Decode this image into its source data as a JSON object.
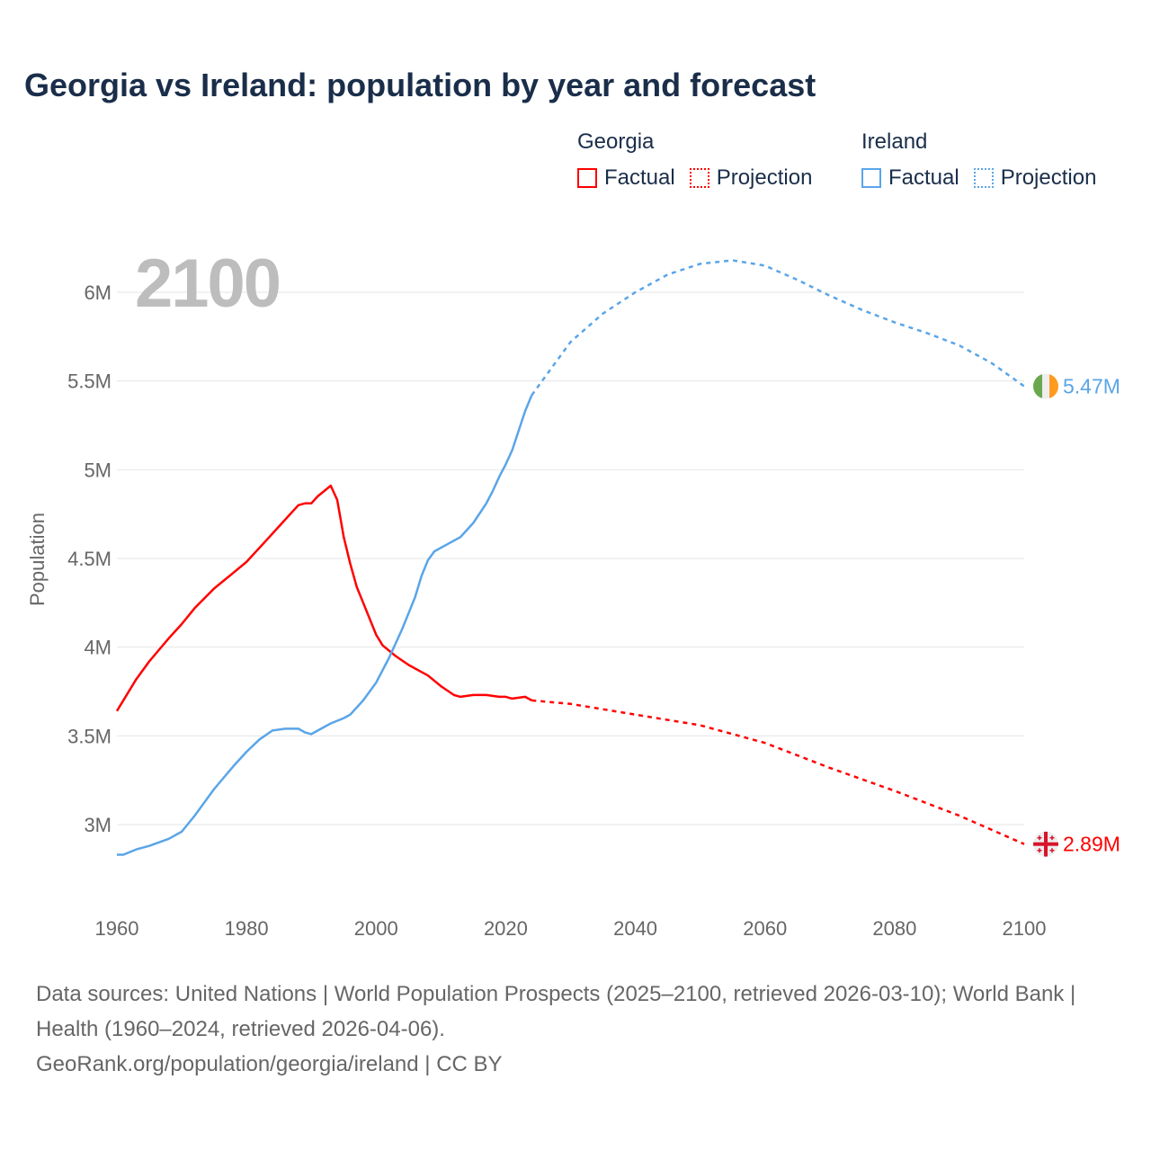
{
  "title": "Georgia vs Ireland: population by year and forecast",
  "legend": {
    "groups": [
      {
        "name": "Georgia",
        "factual": "Factual",
        "projection": "Projection",
        "color": "#ff0000"
      },
      {
        "name": "Ireland",
        "factual": "Factual",
        "projection": "Projection",
        "color": "#5aa5e8"
      }
    ]
  },
  "current_year_label": "2100",
  "footer": {
    "sources": "Data sources: United Nations | World Population Prospects (2025–2100, retrieved 2026-03-10); World Bank | Health (1960–2024, retrieved 2026-04-06).",
    "link": "GeoRank.org/population/georgia/ireland | CC BY"
  },
  "chart_data": {
    "type": "line",
    "title": "Georgia vs Ireland: population by year and forecast",
    "xlabel": "",
    "ylabel": "Population",
    "xlim": [
      1960,
      2100
    ],
    "ylim": [
      2.75,
      6.25
    ],
    "x_ticks": [
      "1960",
      "1980",
      "2000",
      "2020",
      "2040",
      "2060",
      "2080",
      "2100"
    ],
    "y_ticks": [
      {
        "value": 3,
        "label": "3M"
      },
      {
        "value": 3.5,
        "label": "3.5M"
      },
      {
        "value": 4,
        "label": "4M"
      },
      {
        "value": 4.5,
        "label": "4.5M"
      },
      {
        "value": 5,
        "label": "5M"
      },
      {
        "value": 5.5,
        "label": "5.5M"
      },
      {
        "value": 6,
        "label": "6M"
      }
    ],
    "grid": true,
    "units": "millions",
    "series": [
      {
        "name": "Georgia",
        "color": "#ff0000",
        "end_label": "2.89M",
        "flag": "georgia-flag",
        "factual": {
          "x": [
            1960,
            1963,
            1965,
            1968,
            1970,
            1972,
            1975,
            1978,
            1980,
            1983,
            1985,
            1987,
            1988,
            1989,
            1990,
            1991,
            1993,
            1994,
            1995,
            1996,
            1997,
            1998,
            2000,
            2001,
            2003,
            2005,
            2007,
            2008,
            2010,
            2012,
            2013,
            2015,
            2017,
            2019,
            2020,
            2021,
            2023,
            2024
          ],
          "y": [
            3.64,
            3.82,
            3.92,
            4.05,
            4.13,
            4.22,
            4.33,
            4.42,
            4.48,
            4.6,
            4.68,
            4.76,
            4.8,
            4.81,
            4.81,
            4.85,
            4.91,
            4.83,
            4.62,
            4.47,
            4.34,
            4.25,
            4.07,
            4.01,
            3.95,
            3.9,
            3.86,
            3.84,
            3.78,
            3.73,
            3.72,
            3.73,
            3.73,
            3.72,
            3.72,
            3.71,
            3.72,
            3.7
          ]
        },
        "projection": {
          "x": [
            2024,
            2030,
            2040,
            2050,
            2060,
            2070,
            2080,
            2090,
            2100
          ],
          "y": [
            3.7,
            3.68,
            3.62,
            3.56,
            3.46,
            3.32,
            3.19,
            3.05,
            2.89
          ]
        }
      },
      {
        "name": "Ireland",
        "color": "#5aa5e8",
        "end_label": "5.47M",
        "flag": "ireland-flag",
        "factual": {
          "x": [
            1960,
            1961,
            1963,
            1965,
            1968,
            1970,
            1972,
            1975,
            1978,
            1980,
            1982,
            1984,
            1986,
            1988,
            1989,
            1990,
            1991,
            1993,
            1995,
            1996,
            1998,
            2000,
            2002,
            2004,
            2006,
            2007,
            2008,
            2009,
            2011,
            2013,
            2014,
            2015,
            2017,
            2018,
            2019,
            2020,
            2021,
            2022,
            2023,
            2024
          ],
          "y": [
            2.83,
            2.83,
            2.86,
            2.88,
            2.92,
            2.96,
            3.05,
            3.2,
            3.33,
            3.41,
            3.48,
            3.53,
            3.54,
            3.54,
            3.52,
            3.51,
            3.53,
            3.57,
            3.6,
            3.62,
            3.7,
            3.8,
            3.94,
            4.1,
            4.28,
            4.4,
            4.49,
            4.54,
            4.58,
            4.62,
            4.66,
            4.7,
            4.81,
            4.88,
            4.96,
            5.03,
            5.11,
            5.22,
            5.33,
            5.42
          ]
        },
        "projection": {
          "x": [
            2024,
            2030,
            2035,
            2040,
            2045,
            2050,
            2055,
            2060,
            2065,
            2070,
            2075,
            2080,
            2085,
            2090,
            2095,
            2100
          ],
          "y": [
            5.42,
            5.72,
            5.88,
            6.0,
            6.1,
            6.16,
            6.18,
            6.15,
            6.07,
            5.98,
            5.9,
            5.83,
            5.77,
            5.7,
            5.6,
            5.47
          ]
        }
      }
    ]
  }
}
